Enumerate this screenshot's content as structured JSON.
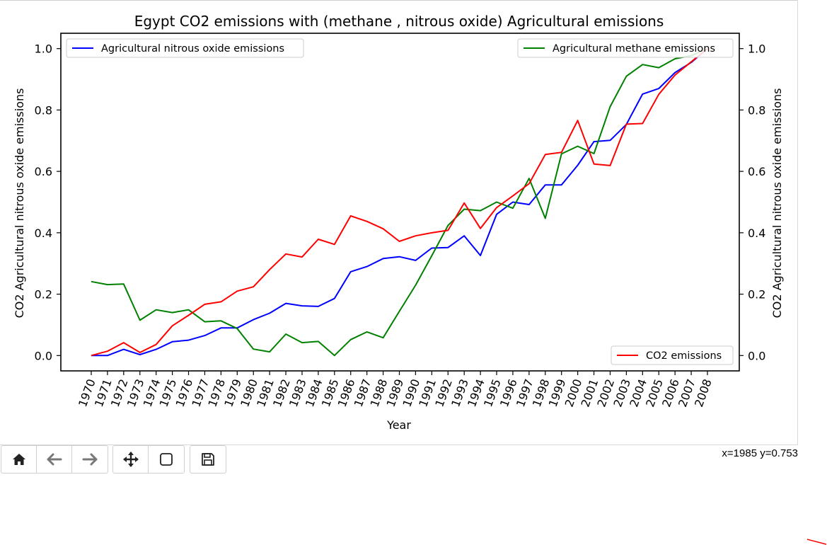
{
  "toolbar": {
    "buttons": [
      {
        "name": "home-icon"
      },
      {
        "name": "back-arrow-icon"
      },
      {
        "name": "forward-arrow-icon"
      },
      {
        "name": "pan-move-icon"
      },
      {
        "name": "zoom-rect-icon"
      },
      {
        "name": "save-floppy-icon"
      }
    ]
  },
  "status": {
    "coords": "x=1985 y=0.753"
  },
  "chart_data": {
    "type": "line",
    "title": "Egypt CO2 emissions with (methane , nitrous oxide) Agricultural emissions",
    "xlabel": "Year",
    "ylabel_left": "CO2 Agricultural nitrous oxide emissions",
    "ylabel_right": "CO2 Agricultural nitrous oxide emissions",
    "categories": [
      "1970",
      "1971",
      "1972",
      "1973",
      "1974",
      "1975",
      "1976",
      "1977",
      "1978",
      "1979",
      "1980",
      "1981",
      "1982",
      "1983",
      "1984",
      "1985",
      "1986",
      "1987",
      "1988",
      "1989",
      "1990",
      "1991",
      "1992",
      "1993",
      "1994",
      "1995",
      "1996",
      "1997",
      "1998",
      "1999",
      "2000",
      "2001",
      "2002",
      "2003",
      "2004",
      "2005",
      "2006",
      "2007",
      "2008"
    ],
    "ylim": [
      -0.05,
      1.05
    ],
    "yticks": [
      "0.0",
      "0.2",
      "0.4",
      "0.6",
      "0.8",
      "1.0"
    ],
    "series": [
      {
        "name": "Agricultural nitrous oxide emissions",
        "color": "#0000ff",
        "legend": "top-left",
        "values": [
          0.0,
          0.0,
          0.02,
          0.003,
          0.02,
          0.045,
          0.05,
          0.065,
          0.09,
          0.09,
          0.117,
          0.138,
          0.17,
          0.162,
          0.16,
          0.186,
          0.273,
          0.29,
          0.316,
          0.322,
          0.31,
          0.35,
          0.352,
          0.39,
          0.326,
          0.46,
          0.5,
          0.492,
          0.556,
          0.556,
          0.62,
          0.697,
          0.701,
          0.753,
          0.852,
          0.87,
          0.922,
          0.955,
          1.0
        ]
      },
      {
        "name": "Agricultural methane emissions",
        "color": "#008000",
        "legend": "top-right",
        "values": [
          0.241,
          0.231,
          0.233,
          0.115,
          0.149,
          0.14,
          0.149,
          0.11,
          0.113,
          0.088,
          0.021,
          0.012,
          0.07,
          0.042,
          0.046,
          0.0,
          0.052,
          0.077,
          0.058,
          0.144,
          0.229,
          0.325,
          0.424,
          0.477,
          0.472,
          0.5,
          0.48,
          0.577,
          0.447,
          0.657,
          0.682,
          0.658,
          0.811,
          0.91,
          0.948,
          0.938,
          0.967,
          0.977,
          1.0
        ]
      },
      {
        "name": "CO2 emissions",
        "color": "#ff0000",
        "legend": "bottom-right",
        "values": [
          0.0,
          0.014,
          0.042,
          0.01,
          0.036,
          0.097,
          0.131,
          0.167,
          0.175,
          0.21,
          0.224,
          0.28,
          0.331,
          0.321,
          0.379,
          0.362,
          0.455,
          0.437,
          0.413,
          0.372,
          0.39,
          0.4,
          0.408,
          0.497,
          0.414,
          0.482,
          0.52,
          0.56,
          0.655,
          0.662,
          0.766,
          0.624,
          0.619,
          0.754,
          0.756,
          0.851,
          0.914,
          0.957,
          1.0
        ]
      }
    ]
  }
}
